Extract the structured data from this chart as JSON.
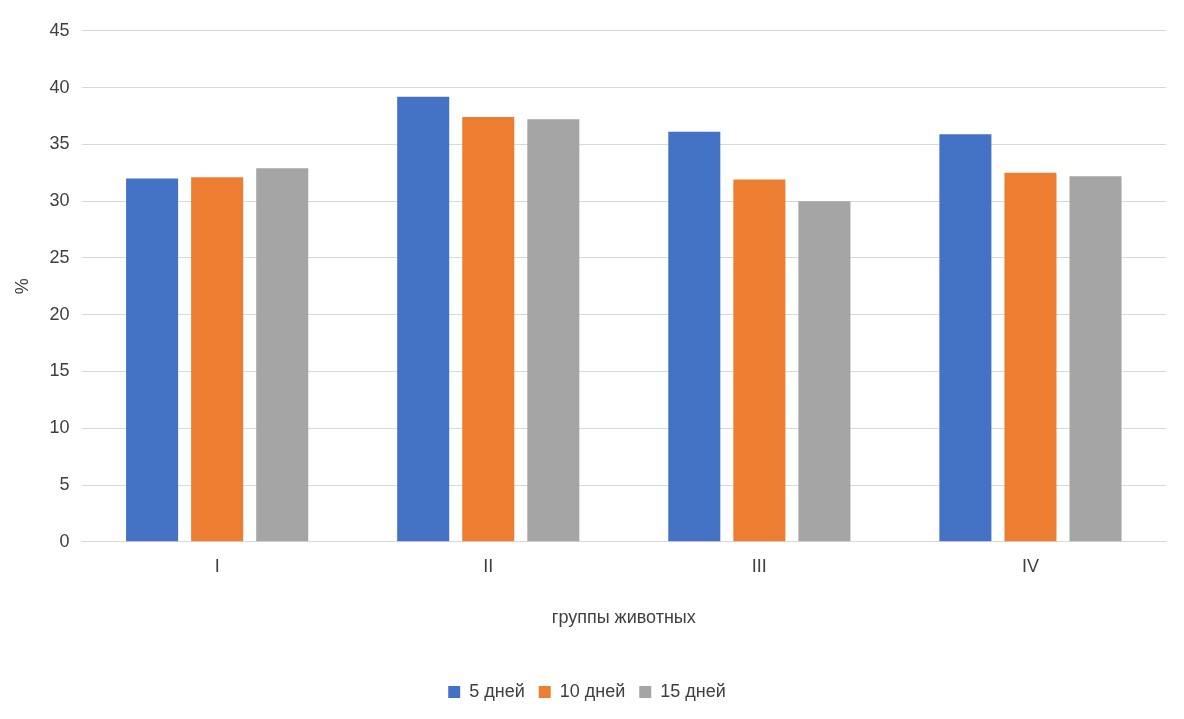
{
  "chart_data": {
    "type": "bar",
    "xlabel": "группы животных",
    "ylabel": "%",
    "categories": [
      "I",
      "II",
      "III",
      "IV"
    ],
    "series": [
      {
        "name": "5 дней",
        "color": "#4472c4",
        "values": [
          32.0,
          39.2,
          36.1,
          35.9
        ]
      },
      {
        "name": "10 дней",
        "color": "#ed7d31",
        "values": [
          32.1,
          37.4,
          31.9,
          32.5
        ]
      },
      {
        "name": "15 дней",
        "color": "#a5a5a5",
        "values": [
          32.9,
          37.2,
          30.0,
          32.2
        ]
      }
    ],
    "ylim": [
      0,
      45
    ],
    "yticks": [
      0,
      5,
      10,
      15,
      20,
      25,
      30,
      35,
      40,
      45
    ],
    "grid": "y",
    "legend": "bottom"
  }
}
